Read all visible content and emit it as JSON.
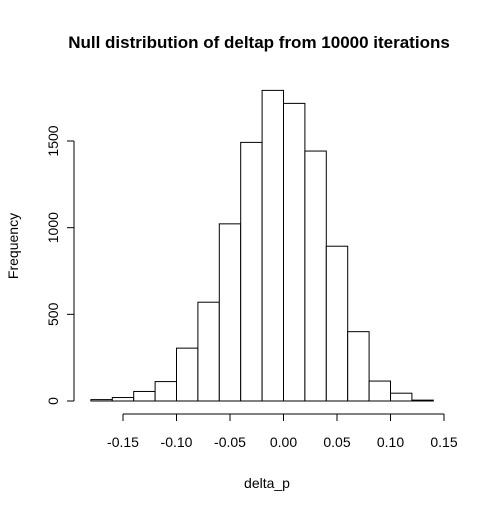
{
  "chart_data": {
    "type": "bar",
    "title": "Null distribution of deltap from 10000 iterations",
    "xlabel": "delta_p",
    "ylabel": "Frequency",
    "bin_edges": [
      -0.18,
      -0.16,
      -0.14,
      -0.12,
      -0.1,
      -0.08,
      -0.06,
      -0.04,
      -0.02,
      0.0,
      0.02,
      0.04,
      0.06,
      0.08,
      0.1,
      0.12,
      0.14
    ],
    "values": [
      8,
      20,
      55,
      112,
      305,
      570,
      1022,
      1492,
      1792,
      1717,
      1442,
      893,
      400,
      115,
      45,
      5
    ],
    "xlim": [
      -0.18,
      0.15
    ],
    "ylim": [
      0,
      1800
    ],
    "x_ticks": [
      -0.15,
      -0.1,
      -0.05,
      0.0,
      0.05,
      0.1,
      0.15
    ],
    "x_tick_labels": [
      "-0.15",
      "-0.10",
      "-0.05",
      "0.00",
      "0.05",
      "0.10",
      "0.15"
    ],
    "y_ticks": [
      0,
      500,
      1000,
      1500
    ],
    "y_tick_labels": [
      "0",
      "500",
      "1000",
      "1500"
    ],
    "grid": false,
    "bar_fill": "#ffffff",
    "bar_stroke": "#000000"
  }
}
